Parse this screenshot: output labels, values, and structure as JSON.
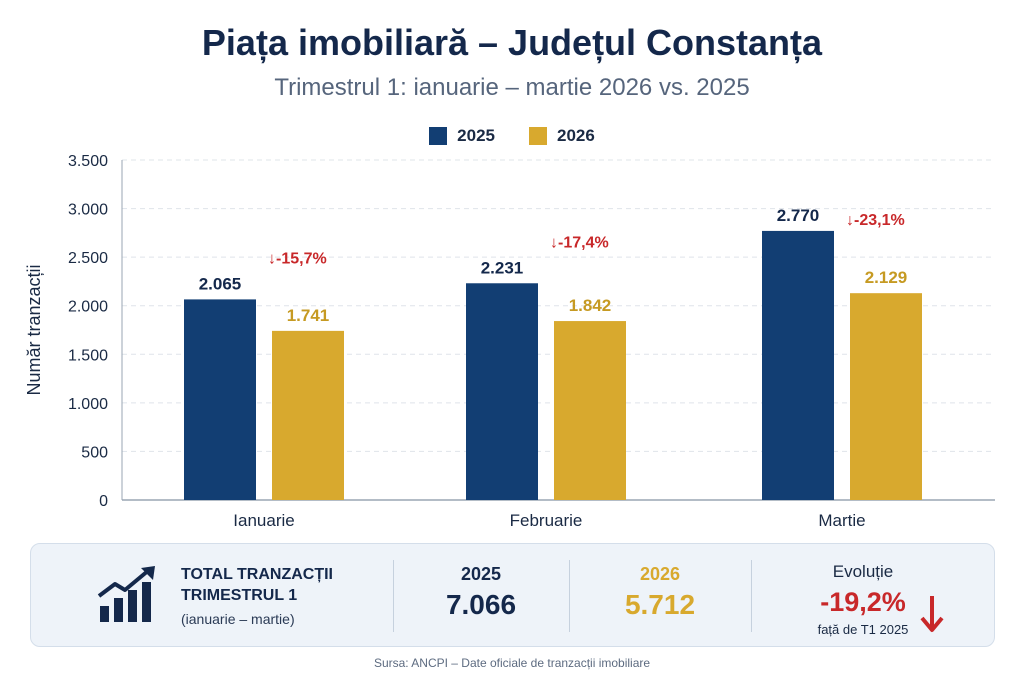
{
  "colors": {
    "c2025": "#123e73",
    "c2026": "#d8a92e",
    "decrease": "#c8282a",
    "grid": "#dfe4ea",
    "axis": "#1a2a44"
  },
  "chart_data": {
    "type": "bar",
    "title": "Piața imobiliară – Județul Constanța",
    "subtitle": "Trimestrul 1: ianuarie – martie 2026 vs. 2025",
    "ylabel": "Număr tranzacții",
    "xlabel": "",
    "ylim": [
      0,
      3500
    ],
    "yticks": [
      0,
      500,
      1000,
      1500,
      2000,
      2500,
      3000,
      3500
    ],
    "ytick_labels": [
      "0",
      "500",
      "1.000",
      "1.500",
      "2.000",
      "2.500",
      "3.000",
      "3.500"
    ],
    "grid": true,
    "legend_position": "top-center",
    "categories": [
      "Ianuarie",
      "Februarie",
      "Martie"
    ],
    "series": [
      {
        "name": "2025",
        "values": [
          2065,
          2231,
          2770
        ],
        "labels": [
          "2.065",
          "2.231",
          "2.770"
        ]
      },
      {
        "name": "2026",
        "values": [
          1741,
          1842,
          2129
        ],
        "labels": [
          "1.741",
          "1.842",
          "2.129"
        ]
      }
    ],
    "changes": [
      "-15,7%",
      "-17,4%",
      "-23,1%"
    ]
  },
  "summary": {
    "title_line1": "TOTAL TRANZACȚII",
    "title_line2": "TRIMESTRUL 1",
    "period": "(ianuarie – martie)",
    "year1": "2025",
    "total1": "7.066",
    "year2": "2026",
    "total2": "5.712",
    "evolution_label": "Evoluție",
    "evolution_value": "-19,2%",
    "evolution_note": "față de T1 2025",
    "icon": "bar-chart-growth-icon"
  },
  "source": "Sursa: ANCPI – Date oficiale de tranzacții imobiliare"
}
